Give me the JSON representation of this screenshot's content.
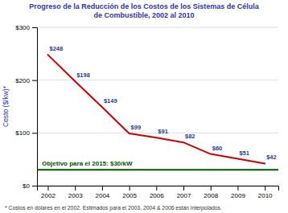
{
  "chart_data": {
    "type": "line",
    "title": "Progreso de la Reducción de los Costos de los Sistemas de Célula\nde Combustible, 2002 al 2010",
    "x": [
      2002,
      2003,
      2004,
      2005,
      2006,
      2007,
      2008,
      2009,
      2010
    ],
    "values": [
      248,
      198,
      149,
      99,
      91,
      82,
      60,
      51,
      42
    ],
    "value_labels": [
      "$248",
      "$198",
      "$149",
      "$99",
      "$91",
      "$82",
      "$60",
      "$51",
      "$42"
    ],
    "data_labels": true,
    "color": "#CC0000",
    "xlim": [
      2001.6,
      2010.5
    ],
    "xticks": [
      2002,
      2003,
      2004,
      2005,
      2006,
      2007,
      2008,
      2009,
      2010
    ],
    "ylim": [
      0,
      300
    ],
    "yticks": [
      {
        "value": 0,
        "label": "$0"
      },
      {
        "value": 100,
        "label": "$100"
      },
      {
        "value": 200,
        "label": "$200"
      },
      {
        "value": 300,
        "label": "$300"
      }
    ],
    "ylabel": "Costo ($/kw)*",
    "grid": true,
    "annotations": [
      {
        "text": "Objetivo para el 2015: $30/kW",
        "y": 30,
        "color": "#005500"
      }
    ],
    "footnote": "* Costos en dólares en el 2002.  Estimados para el 2003, 2004 & 2006 están interpolados."
  }
}
